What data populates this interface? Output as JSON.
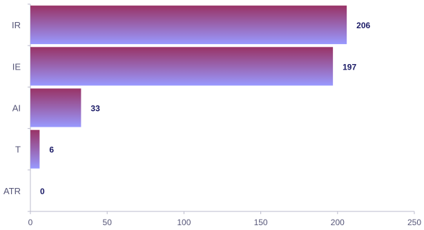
{
  "chart_data": {
    "type": "bar",
    "orientation": "horizontal",
    "categories": [
      "IR",
      "IE",
      "AI",
      "T",
      "ATR"
    ],
    "values": [
      206,
      197,
      33,
      6,
      0
    ],
    "value_labels": [
      "206",
      "197",
      "33",
      "6",
      "0"
    ],
    "xticks": [
      "0",
      "50",
      "100",
      "150",
      "200",
      "250"
    ],
    "xlim": [
      0,
      250
    ],
    "title": "",
    "xlabel": "",
    "ylabel": "",
    "grid": false,
    "legend": "none",
    "colors": {
      "bar_top": "#993366",
      "bar_bottom": "#9999ff",
      "axis": "#bbbbcc"
    }
  }
}
